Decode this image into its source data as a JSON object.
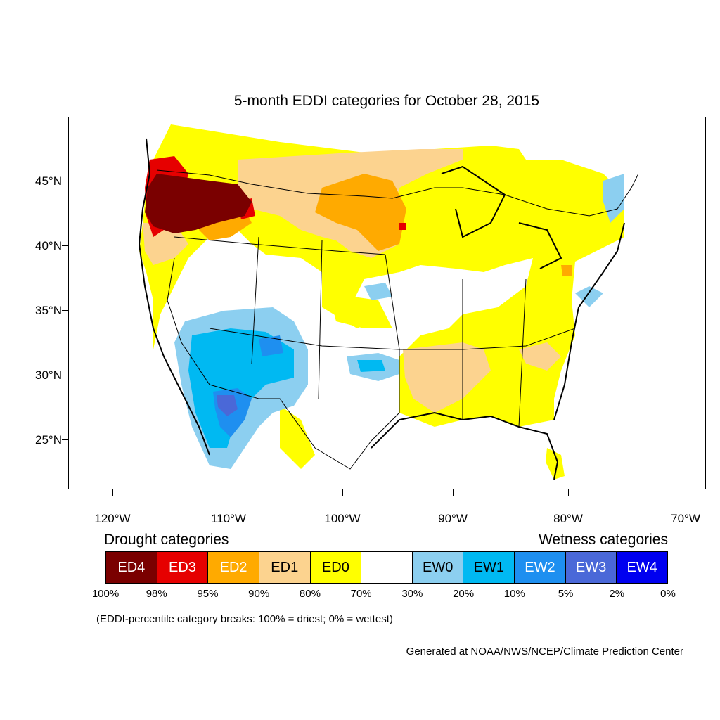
{
  "title": "5-month EDDI categories for October 28, 2015",
  "map": {
    "lat_ticks": [
      "45°N",
      "40°N",
      "35°N",
      "30°N",
      "25°N"
    ],
    "lon_ticks": [
      "120°W",
      "110°W",
      "100°W",
      "90°W",
      "80°W",
      "70°W"
    ]
  },
  "legend": {
    "drought_label": "Drought categories",
    "wetness_label": "Wetness categories",
    "categories": [
      {
        "label": "ED4",
        "color": "#7a0000",
        "text_color": "#ffffff"
      },
      {
        "label": "ED3",
        "color": "#e60000",
        "text_color": "#ffffff"
      },
      {
        "label": "ED2",
        "color": "#ffaa00",
        "text_color": "#ffffff"
      },
      {
        "label": "ED1",
        "color": "#fcd38f",
        "text_color": "#000000"
      },
      {
        "label": "ED0",
        "color": "#ffff00",
        "text_color": "#000000"
      },
      {
        "label": "",
        "color": "#ffffff",
        "text_color": "#000000"
      },
      {
        "label": "EW0",
        "color": "#8ccff0",
        "text_color": "#000000"
      },
      {
        "label": "EW1",
        "color": "#00b9f2",
        "text_color": "#000000"
      },
      {
        "label": "EW2",
        "color": "#1e8ff0",
        "text_color": "#ffffff"
      },
      {
        "label": "EW3",
        "color": "#4a68d8",
        "text_color": "#ffffff"
      },
      {
        "label": "EW4",
        "color": "#0000f0",
        "text_color": "#ffffff"
      }
    ],
    "breaks": [
      "100%",
      "98%",
      "95%",
      "90%",
      "80%",
      "70%",
      "30%",
      "20%",
      "10%",
      "5%",
      "2%",
      "0%"
    ]
  },
  "note": "(EDDI-percentile category breaks: 100% = driest; 0% = wettest)",
  "credit": "Generated at NOAA/NWS/NCEP/Climate Prediction Center"
}
